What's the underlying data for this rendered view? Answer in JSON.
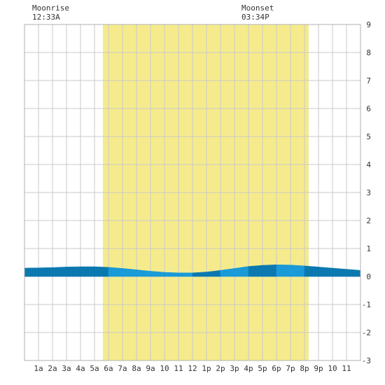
{
  "header": {
    "moonrise_label": "Moonrise",
    "moonrise_time": "12:33A",
    "moonset_label": "Moonset",
    "moonset_time": "03:34P"
  },
  "chart_data": {
    "type": "area",
    "title": "",
    "xlabel": "",
    "ylabel": "",
    "xlim": [
      0,
      24
    ],
    "ylim": [
      -3,
      9
    ],
    "grid": true,
    "x_tick_labels": [
      "1a",
      "2a",
      "3a",
      "4a",
      "5a",
      "6a",
      "7a",
      "8a",
      "9a",
      "10",
      "11",
      "12",
      "1p",
      "2p",
      "3p",
      "4p",
      "5p",
      "6p",
      "7p",
      "8p",
      "9p",
      "10",
      "11"
    ],
    "y_tick_labels": [
      "9",
      "8",
      "7",
      "6",
      "5",
      "4",
      "3",
      "2",
      "1",
      "0",
      "-1",
      "-2",
      "-3"
    ],
    "daylight": {
      "start_hour": 5.6,
      "end_hour": 20.3
    },
    "tide_curve": {
      "x": [
        0,
        1,
        2,
        3,
        4,
        5,
        6,
        7,
        8,
        9,
        10,
        11,
        12,
        13,
        14,
        15,
        16,
        17,
        18,
        19,
        20,
        21,
        22,
        23,
        24
      ],
      "y": [
        0.3,
        0.31,
        0.32,
        0.34,
        0.35,
        0.35,
        0.33,
        0.29,
        0.24,
        0.19,
        0.15,
        0.13,
        0.13,
        0.16,
        0.22,
        0.29,
        0.36,
        0.4,
        0.42,
        0.41,
        0.38,
        0.34,
        0.3,
        0.26,
        0.22
      ]
    },
    "colors": {
      "daylight": "#f5eb8c",
      "tide_light": "#1a9ad6",
      "tide_dark": "#0b79b0",
      "grid": "#c8c8c8",
      "background": "#ffffff"
    }
  }
}
